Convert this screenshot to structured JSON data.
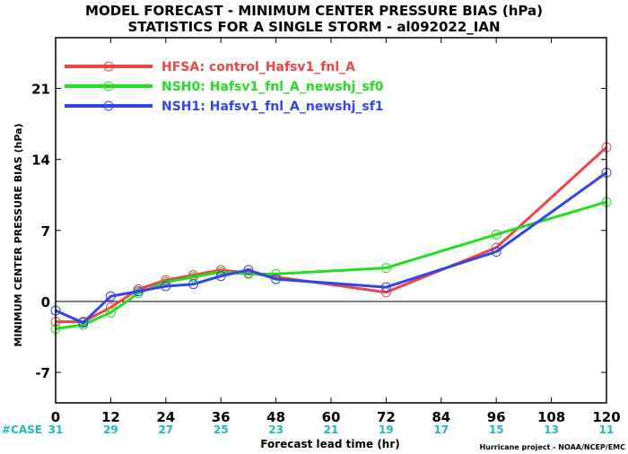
{
  "chart_data": {
    "type": "line",
    "title": "MODEL FORECAST - MINIMUM CENTER PRESSURE BIAS (hPa)",
    "subtitle": "STATISTICS FOR A SINGLE STORM - al092022_IAN",
    "xlabel": "Forecast lead time (hr)",
    "ylabel": "MINIMUM CENTER PRESSURE BIAS (hPa)",
    "xlim": [
      0,
      120
    ],
    "ylim": [
      -10,
      26
    ],
    "xticks": [
      0,
      12,
      24,
      36,
      48,
      60,
      72,
      84,
      96,
      108,
      120
    ],
    "yticks": [
      -7,
      0,
      7,
      14,
      21
    ],
    "grid": false,
    "legend_position": "top-left",
    "case_label": "#CASE",
    "case_counts": [
      31,
      29,
      27,
      25,
      23,
      21,
      19,
      17,
      15,
      13,
      11
    ],
    "credit": "Hurricane project - NOAA/NCEP/EMC",
    "series": [
      {
        "name": "HFSA: control_Hafsv1_fnl_A",
        "color": "#ee4444",
        "x": [
          0,
          6,
          12,
          18,
          24,
          30,
          36,
          42,
          72,
          96,
          120
        ],
        "values": [
          -2.0,
          -2.0,
          -0.6,
          1.2,
          2.1,
          2.6,
          3.1,
          2.8,
          0.9,
          5.3,
          15.2
        ]
      },
      {
        "name": "NSH0: Hafsv1_fnl_A_newshj_sf0",
        "color": "#22dd22",
        "x": [
          0,
          6,
          12,
          18,
          24,
          30,
          36,
          42,
          48,
          72,
          96,
          120
        ],
        "values": [
          -2.7,
          -2.3,
          -1.1,
          0.8,
          1.9,
          2.4,
          2.9,
          2.7,
          2.7,
          3.3,
          6.6,
          9.8
        ]
      },
      {
        "name": "NSH1: Hafsv1_fnl_A_newshj_sf1",
        "color": "#3344ee",
        "x": [
          0,
          6,
          12,
          18,
          24,
          30,
          36,
          42,
          48,
          72,
          96,
          120
        ],
        "values": [
          -0.9,
          -2.1,
          0.5,
          1.0,
          1.5,
          1.7,
          2.5,
          3.1,
          2.2,
          1.4,
          4.9,
          12.7
        ]
      }
    ]
  }
}
